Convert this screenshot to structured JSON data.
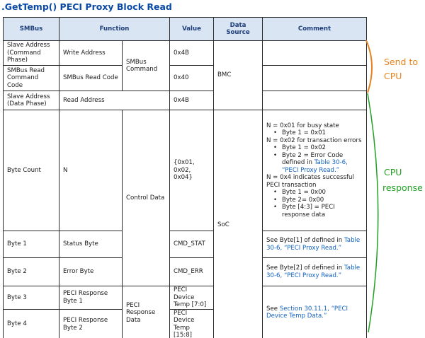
{
  "title": ".GetTemp() PECI Proxy Block Read",
  "table": {
    "headers": [
      "SMBus",
      "Function",
      "Value",
      "Data Source",
      "Comment"
    ],
    "rows": {
      "r1": {
        "smbus": "Slave Address (Command Phase)",
        "function": "Write Address",
        "value": "0x4B"
      },
      "r2": {
        "smbus": "SMBus Read Command Code",
        "function": "SMBus Read Code",
        "value": "0x40"
      },
      "r3": {
        "smbus": "Slave Address (Data Phase)",
        "function": "Read Address",
        "value": "0x4B"
      },
      "r4": {
        "smbus": "Byte Count",
        "function": "N",
        "value_lines": [
          "{0x01,",
          "0x02,",
          "0x04}"
        ],
        "comment": {
          "l1": "N = 0x01 for busy state",
          "b1": "Byte 1 = 0x01",
          "l2": "N = 0x02 for transaction errors",
          "b2": "Byte 1 = 0x02",
          "b3_pre": "Byte 2 = Error Code defined in ",
          "b3_link": "Table 30-6, “PECI Proxy Read.”",
          "l3": "N = 0x4 indicates successful PECI transaction",
          "b4": "Byte 1 = 0x00",
          "b5": "Byte 2= 0x00",
          "b6": "Byte [4:3] = PECI response data"
        }
      },
      "r5": {
        "smbus": "Byte 1",
        "function": "Status Byte",
        "value": "CMD_STAT",
        "comment_pre": "See Byte[1] of defined in ",
        "comment_link": "Table 30-6, “PECI Proxy Read.”"
      },
      "r6": {
        "smbus": "Byte 2",
        "function": "Error Byte",
        "value": "CMD_ERR",
        "comment_pre": "See Byte[2] of defined in ",
        "comment_link": "Table 30-6, “PECI Proxy Read.”"
      },
      "r7": {
        "smbus": "Byte 3",
        "function": "PECI Response Byte 1",
        "value": "PECI Device Temp [7:0]"
      },
      "r8": {
        "smbus": "Byte 4",
        "function": "PECI Response Byte 2",
        "value": "PECI Device Temp [15:8]"
      }
    },
    "groups": {
      "smbus_command": "SMBus Command",
      "control_data": "Control Data",
      "peci_response_data": "PECI Response Data",
      "source_bmc": "BMC",
      "source_soc": "SoC",
      "r78_comment_pre": "See ",
      "r78_comment_link": "Section 30.11.1, “PECI Device Temp Data.”"
    }
  },
  "annotations": {
    "send_to_cpu": [
      "Send to",
      "CPU"
    ],
    "cpu_response": [
      "CPU",
      "response"
    ],
    "colors": {
      "send": "#e8821e",
      "response": "#22a022",
      "title": "#0a4aa6",
      "link": "#1060c0",
      "header_bg": "#d9e5f3"
    }
  }
}
